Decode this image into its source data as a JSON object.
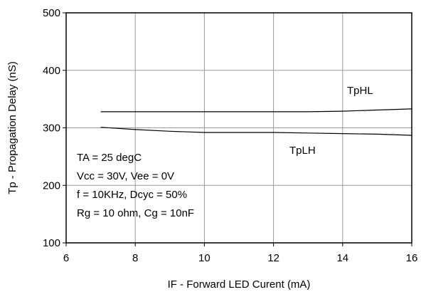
{
  "chart_data": {
    "type": "line",
    "xlabel": "IF - Forward LED Curent (mA)",
    "ylabel": "Tp - Propagation Delay (nS)",
    "xlim": [
      6,
      16
    ],
    "ylim": [
      100,
      500
    ],
    "xticks": [
      6,
      8,
      10,
      12,
      14,
      16
    ],
    "yticks": [
      100,
      200,
      300,
      400,
      500
    ],
    "xtick_labels": [
      "6",
      "8",
      "10",
      "12",
      "14",
      "16"
    ],
    "ytick_labels": [
      "100",
      "200",
      "300",
      "400",
      "500"
    ],
    "grid": true,
    "series": [
      {
        "name": "TpHL",
        "x": [
          7,
          8,
          9,
          10,
          11,
          12,
          13,
          14,
          15,
          16
        ],
        "y": [
          328,
          328,
          328,
          328,
          328,
          328,
          328,
          329,
          331,
          333
        ]
      },
      {
        "name": "TpLH",
        "x": [
          7,
          8,
          9,
          10,
          11,
          12,
          13,
          14,
          15,
          16
        ],
        "y": [
          301,
          297,
          294,
          292,
          292,
          292,
          291,
          290,
          289,
          287
        ]
      }
    ],
    "curve_labels": [
      {
        "text": "TpHL",
        "series": "TpHL"
      },
      {
        "text": "TpLH",
        "series": "TpLH"
      }
    ],
    "annotation": [
      "TA = 25 degC",
      "Vcc = 30V, Vee = 0V",
      "f = 10KHz, Dcyc = 50%",
      "Rg = 10 ohm, Cg = 10nF"
    ]
  }
}
